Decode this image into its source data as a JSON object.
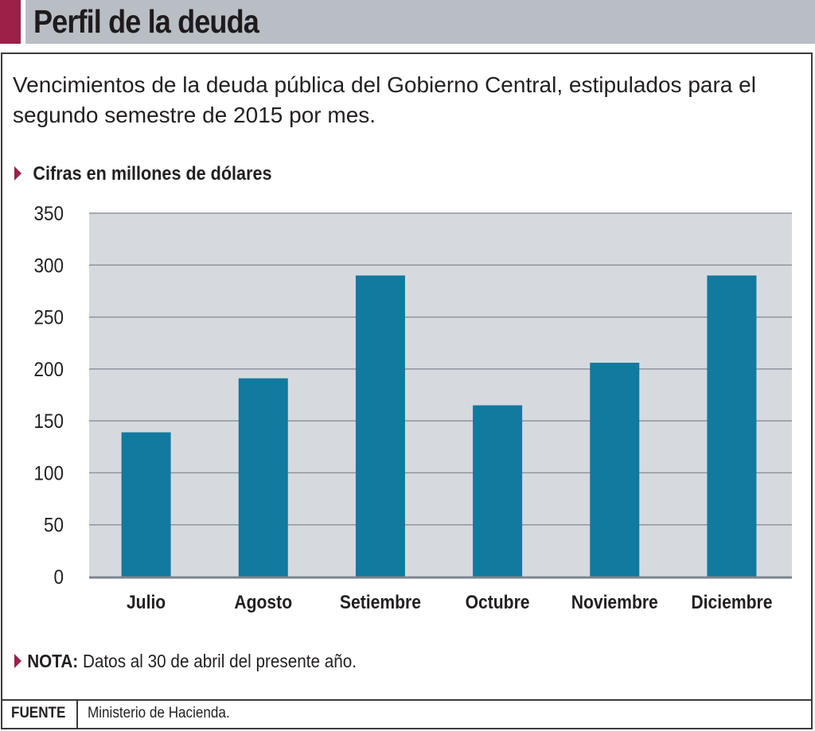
{
  "header": {
    "title": "Perfil de la deuda",
    "accent_color": "#9b2148"
  },
  "subtitle": "Vencimientos de la deuda pública del Gobierno Central, estipulados para el segundo semestre de 2015 por mes.",
  "units_label": "Cifras en millones de dólares",
  "note": {
    "label": "NOTA:",
    "text": "Datos al 30 de abril del presente año."
  },
  "source": {
    "label": "FUENTE",
    "text": "Ministerio de Hacienda."
  },
  "chart_data": {
    "type": "bar",
    "title": "Perfil de la deuda",
    "xlabel": "",
    "ylabel": "Cifras en millones de dólares",
    "categories": [
      "Julio",
      "Agosto",
      "Setiembre",
      "Octubre",
      "Noviembre",
      "Diciembre"
    ],
    "values": [
      139,
      191,
      290,
      165,
      206,
      290
    ],
    "ylim": [
      0,
      350
    ],
    "yticks": [
      0,
      50,
      100,
      150,
      200,
      250,
      300,
      350
    ],
    "grid": true,
    "bar_color": "#12799f",
    "plot_background": "#d6dadf"
  }
}
